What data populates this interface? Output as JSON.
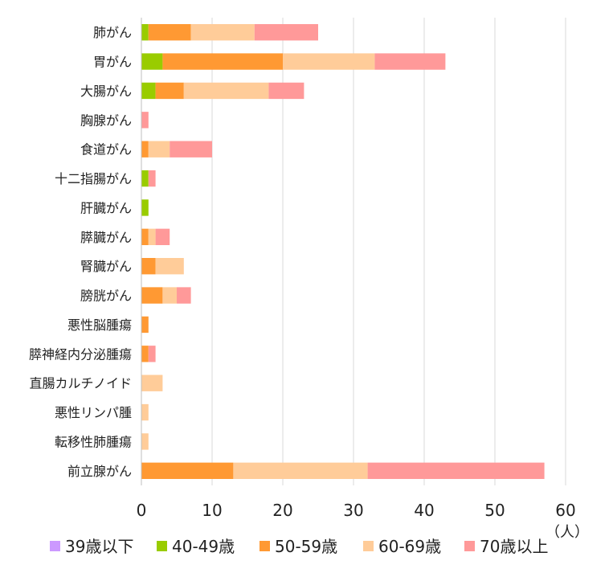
{
  "chart_data": {
    "type": "bar",
    "orientation": "horizontal",
    "stacked": true,
    "categories": [
      "肺がん",
      "胃がん",
      "大腸がん",
      "胸腺がん",
      "食道がん",
      "十二指腸がん",
      "肝臓がん",
      "膵臓がん",
      "腎臓がん",
      "膀胱がん",
      "悪性脳腫瘍",
      "膵神経内分泌腫瘍",
      "直腸カルチノイド",
      "悪性リンパ腫",
      "転移性肺腫瘍",
      "前立腺がん"
    ],
    "series": [
      {
        "name": "39歳以下",
        "color": "#cc99ff",
        "values": [
          0,
          0,
          0,
          0,
          0,
          0,
          0,
          0,
          0,
          0,
          0,
          0,
          0,
          0,
          0,
          0
        ]
      },
      {
        "name": "40-49歳",
        "color": "#99cc00",
        "values": [
          1,
          3,
          2,
          0,
          0,
          1,
          1,
          0,
          0,
          0,
          0,
          0,
          0,
          0,
          0,
          0
        ]
      },
      {
        "name": "50-59歳",
        "color": "#ff9933",
        "values": [
          6,
          17,
          4,
          0,
          1,
          0,
          0,
          1,
          2,
          3,
          1,
          1,
          0,
          0,
          0,
          13
        ]
      },
      {
        "name": "60-69歳",
        "color": "#ffcc99",
        "values": [
          9,
          13,
          12,
          0,
          3,
          0,
          0,
          1,
          4,
          2,
          0,
          0,
          3,
          1,
          1,
          19
        ]
      },
      {
        "name": "70歳以上",
        "color": "#ff9999",
        "values": [
          9,
          10,
          5,
          1,
          6,
          1,
          0,
          2,
          0,
          2,
          0,
          1,
          0,
          0,
          0,
          25
        ]
      }
    ],
    "xlim": [
      0,
      60
    ],
    "xticks": [
      0,
      10,
      20,
      30,
      40,
      50,
      60
    ],
    "unit_label": "（人）",
    "grid": true,
    "legend_position": "bottom"
  }
}
